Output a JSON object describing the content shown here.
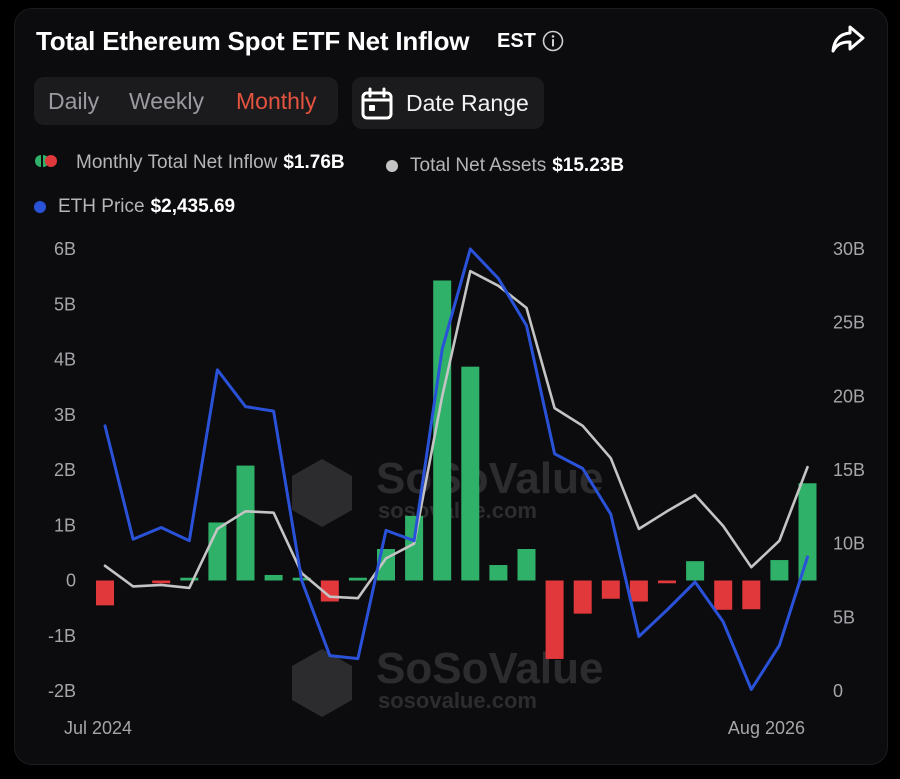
{
  "header": {
    "title": "Total Ethereum Spot ETF Net Inflow",
    "timezone": "EST",
    "info_icon": "info-icon",
    "share_icon": "share-icon"
  },
  "period_tabs": [
    "Daily",
    "Weekly",
    "Monthly"
  ],
  "active_tab": "Monthly",
  "date_range": {
    "label": "Date Range",
    "icon": "calendar-icon"
  },
  "legend": {
    "net_inflow": {
      "label": "Monthly Total Net Inflow",
      "value": "$1.76B"
    },
    "net_assets": {
      "label": "Total Net Assets",
      "value": "$15.23B"
    },
    "eth_price": {
      "label": "ETH Price",
      "value": "$2,435.69"
    }
  },
  "watermark": {
    "brand": "SoSoValue",
    "url": "sosovalue.com"
  },
  "colors": {
    "positive": "#2fb16a",
    "negative": "#e0383b",
    "assets": "#c4c4c4",
    "price": "#2a52d9",
    "active_tab": "#e5533f",
    "background": "#0c0c0e"
  },
  "chart_data": {
    "type": "bar",
    "x_start_label": "Jul 2024",
    "x_end_label": "Aug 2026",
    "y_left": {
      "ticks": [
        "6B",
        "5B",
        "4B",
        "3B",
        "2B",
        "1B",
        "0",
        "-1B",
        "-2B"
      ],
      "min": -2,
      "max": 6,
      "unit": "B"
    },
    "y_right": {
      "ticks": [
        "30B",
        "25B",
        "20B",
        "15B",
        "10B",
        "5B",
        "0"
      ],
      "min": 0,
      "max": 30,
      "unit": "B"
    },
    "series": [
      {
        "name": "Monthly Total Net Inflow",
        "type": "bar",
        "axis": "left",
        "values": [
          -0.45,
          0,
          -0.05,
          0.05,
          1.05,
          2.08,
          0.1,
          0.05,
          -0.38,
          0.05,
          0.57,
          1.17,
          5.43,
          3.87,
          0.28,
          0.57,
          -1.42,
          -0.6,
          -0.33,
          -0.38,
          -0.05,
          0.35,
          -0.53,
          -0.52,
          0.37,
          1.76
        ]
      },
      {
        "name": "Total Net Assets",
        "type": "line",
        "axis": "right",
        "values": [
          8.5,
          7.1,
          7.2,
          7.0,
          11.0,
          12.2,
          12.1,
          8.0,
          6.4,
          6.3,
          9.0,
          10.0,
          20.0,
          28.5,
          27.5,
          26.0,
          19.2,
          18.0,
          15.8,
          11.0,
          12.2,
          13.3,
          11.2,
          8.4,
          10.2,
          15.2
        ]
      },
      {
        "name": "ETH Price",
        "type": "line",
        "axis": "right",
        "values": [
          18.0,
          10.3,
          11.1,
          10.2,
          21.8,
          19.3,
          19.0,
          7.5,
          2.4,
          2.2,
          10.9,
          10.2,
          23.2,
          30.0,
          28.0,
          24.8,
          16.1,
          15.1,
          12.0,
          3.7,
          5.5,
          7.4,
          4.7,
          0.1,
          3.1,
          9.1
        ]
      }
    ]
  }
}
